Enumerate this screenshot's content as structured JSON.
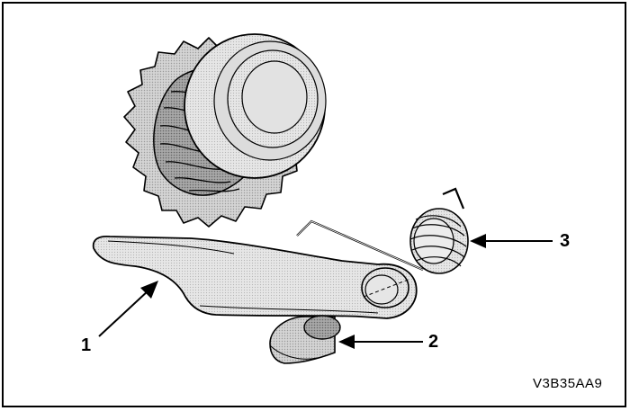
{
  "figure": {
    "code": "V3B35AA9",
    "callouts": [
      {
        "number": "1"
      },
      {
        "number": "2"
      },
      {
        "number": "3"
      }
    ],
    "colors": {
      "line": "#000000",
      "fill_light": "#d9d9d9",
      "fill_mid": "#b8b8b8",
      "fill_dark": "#8c8c8c"
    }
  }
}
